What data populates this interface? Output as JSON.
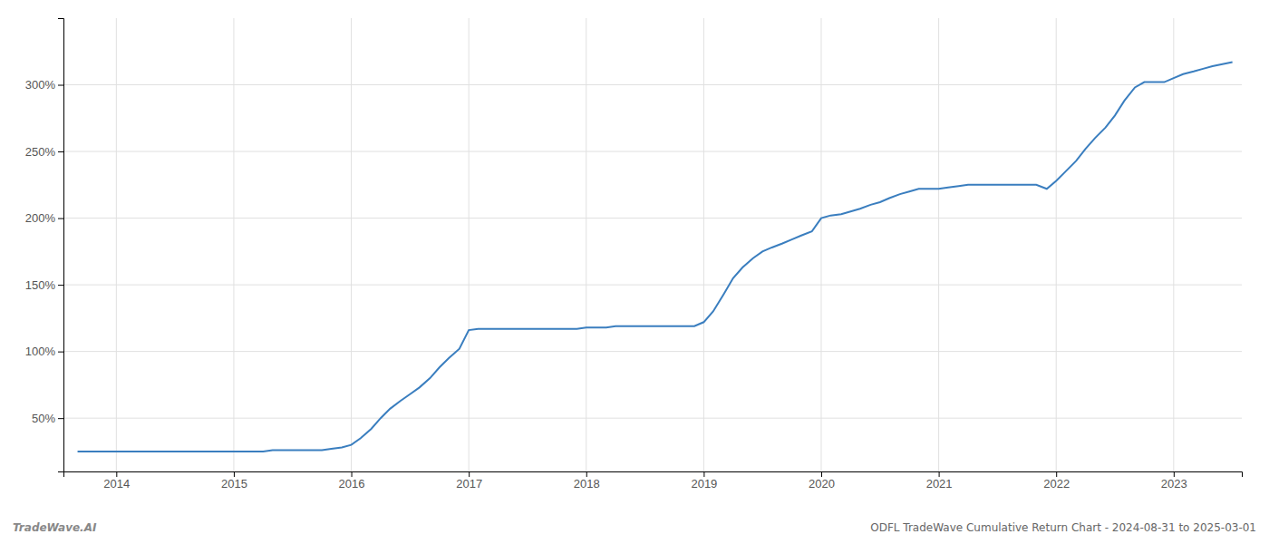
{
  "chart_data": {
    "type": "line",
    "title": "ODFL TradeWave Cumulative Return Chart - 2024-08-31 to 2025-03-01",
    "annotations": [
      "TradeWave.AI"
    ],
    "color": "#3a7ebf",
    "grid": true,
    "x": [
      2013.67,
      2014.0,
      2014.08,
      2014.17,
      2014.25,
      2014.33,
      2014.42,
      2014.5,
      2014.58,
      2014.67,
      2014.75,
      2014.83,
      2014.92,
      2015.0,
      2015.08,
      2015.17,
      2015.25,
      2015.33,
      2015.42,
      2015.5,
      2015.58,
      2015.67,
      2015.75,
      2015.83,
      2015.92,
      2016.0,
      2016.08,
      2016.17,
      2016.25,
      2016.33,
      2016.42,
      2016.5,
      2016.58,
      2016.67,
      2016.75,
      2016.83,
      2016.92,
      2017.0,
      2017.08,
      2017.17,
      2017.25,
      2017.33,
      2017.42,
      2017.5,
      2017.58,
      2017.67,
      2017.75,
      2017.83,
      2017.92,
      2018.0,
      2018.08,
      2018.17,
      2018.25,
      2018.33,
      2018.42,
      2018.5,
      2018.58,
      2018.67,
      2018.75,
      2018.83,
      2018.92,
      2019.0,
      2019.08,
      2019.17,
      2019.25,
      2019.33,
      2019.42,
      2019.5,
      2019.58,
      2019.67,
      2019.75,
      2019.83,
      2019.92,
      2020.0,
      2020.08,
      2020.17,
      2020.25,
      2020.33,
      2020.42,
      2020.5,
      2020.58,
      2020.67,
      2020.75,
      2020.83,
      2020.92,
      2021.0,
      2021.08,
      2021.17,
      2021.25,
      2021.33,
      2021.42,
      2021.5,
      2021.58,
      2021.67,
      2021.75,
      2021.83,
      2021.92,
      2022.0,
      2022.08,
      2022.17,
      2022.25,
      2022.33,
      2022.42,
      2022.5,
      2022.58,
      2022.67,
      2022.75,
      2022.83,
      2022.92,
      2023.0,
      2023.08,
      2023.17,
      2023.25,
      2023.33,
      2023.5
    ],
    "values": [
      25,
      25,
      25,
      25,
      25,
      25,
      25,
      25,
      25,
      25,
      25,
      25,
      25,
      25,
      25,
      25,
      25,
      26,
      26,
      26,
      26,
      26,
      26,
      27,
      28,
      30,
      35,
      42,
      50,
      57,
      63,
      68,
      73,
      80,
      88,
      95,
      102,
      116,
      117,
      117,
      117,
      117,
      117,
      117,
      117,
      117,
      117,
      117,
      117,
      118,
      118,
      118,
      119,
      119,
      119,
      119,
      119,
      119,
      119,
      119,
      119,
      122,
      130,
      143,
      155,
      163,
      170,
      175,
      178,
      181,
      184,
      187,
      190,
      200,
      202,
      203,
      205,
      207,
      210,
      212,
      215,
      218,
      220,
      222,
      222,
      222,
      223,
      224,
      225,
      225,
      225,
      225,
      225,
      225,
      225,
      225,
      222,
      228,
      235,
      243,
      252,
      260,
      268,
      277,
      288,
      298,
      302,
      302,
      302,
      305,
      308,
      310,
      312,
      314,
      317
    ],
    "xlim": [
      2013.55,
      2023.58
    ],
    "xticks": [
      2014,
      2015,
      2016,
      2017,
      2018,
      2019,
      2020,
      2021,
      2022,
      2023
    ],
    "ylim": [
      10,
      350
    ],
    "yticks": [
      {
        "value": 50,
        "label": "50%"
      },
      {
        "value": 100,
        "label": "100%"
      },
      {
        "value": 150,
        "label": "150%"
      },
      {
        "value": 200,
        "label": "200%"
      },
      {
        "value": 250,
        "label": "250%"
      },
      {
        "value": 300,
        "label": "300%"
      }
    ]
  }
}
